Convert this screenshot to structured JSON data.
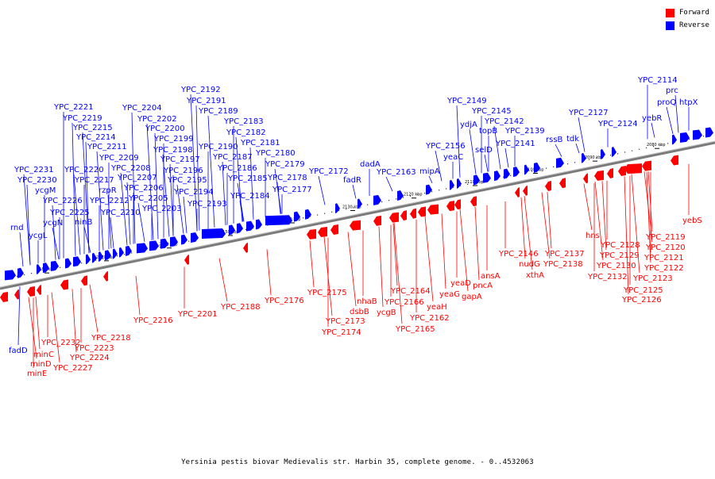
{
  "legend": {
    "forward_label": "Forward",
    "reverse_label": "Reverse",
    "forward_color": "#ff0000",
    "reverse_color": "#0000ff"
  },
  "caption": "Yersinia pestis biovar Medievalis str. Harbin 35, complete genome. - 0..4532063",
  "scale_ticks": [
    "2180 kbp",
    "2170 kbp",
    "2160 kbp",
    "2150 kbp",
    "2140 kbp",
    "2130 kbp",
    "2120 kbp",
    "2110 kbp",
    "2100 kbp",
    "2090 kbp",
    "2080 kbp"
  ],
  "reverse_labels": [
    "YPC_2114",
    "prc",
    "proQ",
    "htpX",
    "yebR",
    "YPC_2127",
    "YPC_2124",
    "tdk",
    "rssB",
    "YPC_2139",
    "YPC_2141",
    "YPC_2142",
    "YPC_2145",
    "YPC_2149",
    "ydjA",
    "topB",
    "selD",
    "YPC_2156",
    "yeaC",
    "mipA",
    "YPC_2163",
    "dadA",
    "fadR",
    "YPC_2172",
    "YPC_2177",
    "YPC_2178",
    "YPC_2179",
    "YPC_2180",
    "YPC_2181",
    "YPC_2182",
    "YPC_2183",
    "YPC_2184",
    "YPC_2185",
    "YPC_2186",
    "YPC_2187",
    "YPC_2189",
    "YPC_2190",
    "YPC_2191",
    "YPC_2192",
    "YPC_2193",
    "YPC_2194",
    "YPC_2195",
    "YPC_2196",
    "YPC_2197",
    "YPC_2198",
    "YPC_2199",
    "YPC_2200",
    "YPC_2202",
    "YPC_2203",
    "YPC_2204",
    "YPC_2205",
    "YPC_2206",
    "YPC_2207",
    "YPC_2208",
    "YPC_2209",
    "YPC_2210",
    "YPC_2211",
    "YPC_2212",
    "YPC_2214",
    "YPC_2215",
    "YPC_2217",
    "YPC_2219",
    "YPC_2220",
    "YPC_2221",
    "rzpR",
    "ninB",
    "YPC_2225",
    "YPC_2226",
    "ycgN",
    "ycgM",
    "YPC_2230",
    "YPC_2231",
    "ycgL",
    "rnd",
    "fadD"
  ],
  "forward_labels": [
    "yebS",
    "YPC_2119",
    "YPC_2120",
    "YPC_2121",
    "YPC_2122",
    "YPC_2123",
    "YPC_2125",
    "YPC_2126",
    "hns",
    "YPC_2128",
    "YPC_2129",
    "YPC_2130",
    "YPC_2132",
    "YPC_2137",
    "YPC_2138",
    "YPC_2146",
    "nudG",
    "xthA",
    "ansA",
    "pncA",
    "gapA",
    "yeaD",
    "yeaG",
    "yeaH",
    "YPC_2162",
    "YPC_2164",
    "YPC_2165",
    "YPC_2166",
    "ycgB",
    "dsbB",
    "nhaB",
    "YPC_2175",
    "YPC_2173",
    "YPC_2174",
    "YPC_2176",
    "YPC_2188",
    "YPC_2201",
    "YPC_2216",
    "YPC_2218",
    "YPC_2223",
    "YPC_2224",
    "YPC_2227",
    "YPC_2232",
    "minC",
    "minD",
    "minE"
  ]
}
